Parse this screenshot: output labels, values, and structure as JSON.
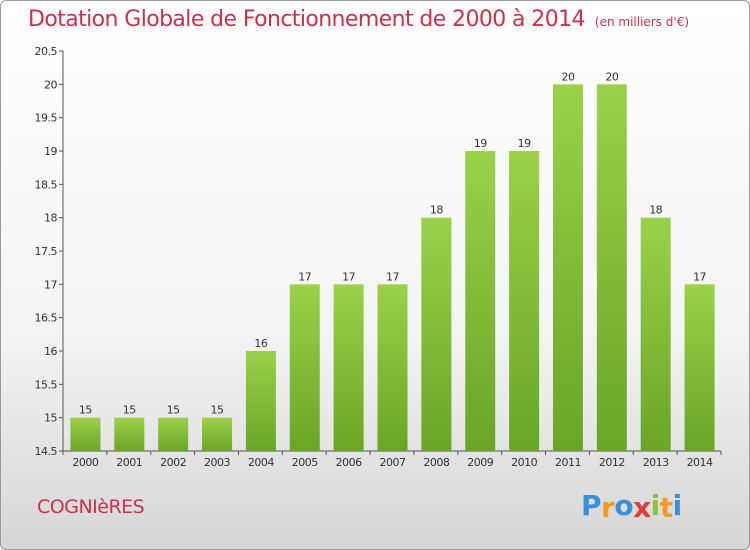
{
  "chart_data": {
    "type": "bar",
    "title": "Dotation Globale de Fonctionnement de 2000 à 2014",
    "unit": "(en milliers d'€)",
    "categories": [
      "2000",
      "2001",
      "2002",
      "2003",
      "2004",
      "2005",
      "2006",
      "2007",
      "2008",
      "2009",
      "2010",
      "2011",
      "2012",
      "2013",
      "2014"
    ],
    "values": [
      15,
      15,
      15,
      15,
      16,
      17,
      17,
      17,
      18,
      19,
      19,
      20,
      20,
      18,
      17
    ],
    "ylim": [
      14.5,
      20.5
    ],
    "yticks": [
      "14.5",
      "15",
      "15.5",
      "16",
      "16.5",
      "17",
      "17.5",
      "18",
      "18.5",
      "19",
      "19.5",
      "20",
      "20.5"
    ],
    "bar_color": "#8cc43c",
    "grid": false
  },
  "city": "COGNIèRES",
  "logo": {
    "letters": [
      "P",
      "r",
      "o",
      "x",
      "i",
      "t",
      "i"
    ],
    "colors": [
      "#3a8fd8",
      "#f39a1e",
      "#3a8fd8",
      "#e03c3c",
      "#8cc43c",
      "#f39a1e",
      "#3a8fd8"
    ]
  }
}
